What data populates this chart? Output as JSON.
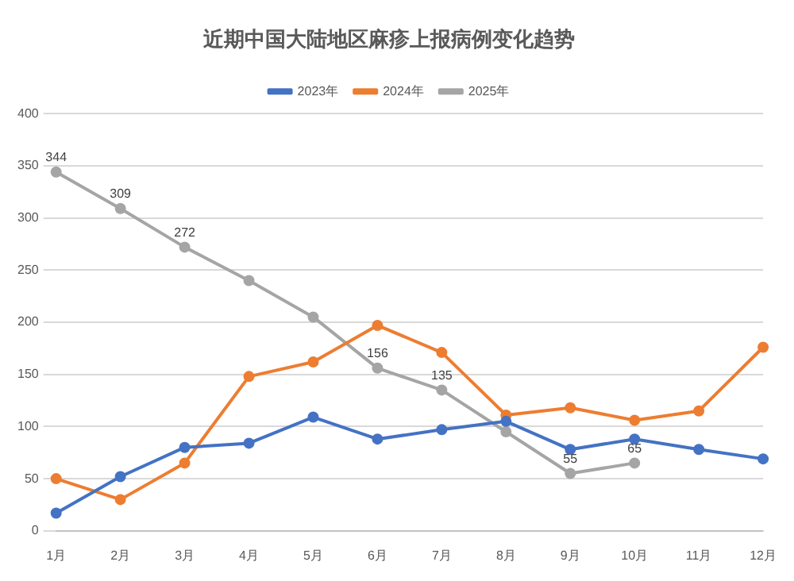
{
  "chart_data": {
    "type": "line",
    "title": "近期中国大陆地区麻疹上报病例变化趋势",
    "categories": [
      "1月",
      "2月",
      "3月",
      "4月",
      "5月",
      "6月",
      "7月",
      "8月",
      "9月",
      "10月",
      "11月",
      "12月"
    ],
    "series": [
      {
        "name": "2023年",
        "color": "#4472c4",
        "values": [
          17,
          52,
          80,
          84,
          109,
          88,
          97,
          105,
          78,
          88,
          78,
          69
        ]
      },
      {
        "name": "2024年",
        "color": "#ed7d31",
        "values": [
          50,
          30,
          65,
          148,
          162,
          197,
          171,
          111,
          118,
          106,
          115,
          176
        ]
      },
      {
        "name": "2025年",
        "color": "#a5a5a5",
        "values": [
          344,
          309,
          272,
          240,
          205,
          156,
          135,
          95,
          55,
          65,
          null,
          null
        ],
        "value_labels": [
          "344",
          "309",
          "272",
          null,
          null,
          "156",
          "135",
          null,
          "55",
          "65",
          null,
          null
        ]
      }
    ],
    "ylim": [
      0,
      400
    ],
    "yticks": [
      0,
      50,
      100,
      150,
      200,
      250,
      300,
      350,
      400
    ],
    "grid": "y",
    "legend": "top",
    "marker": "circle",
    "line_style": "solid"
  }
}
